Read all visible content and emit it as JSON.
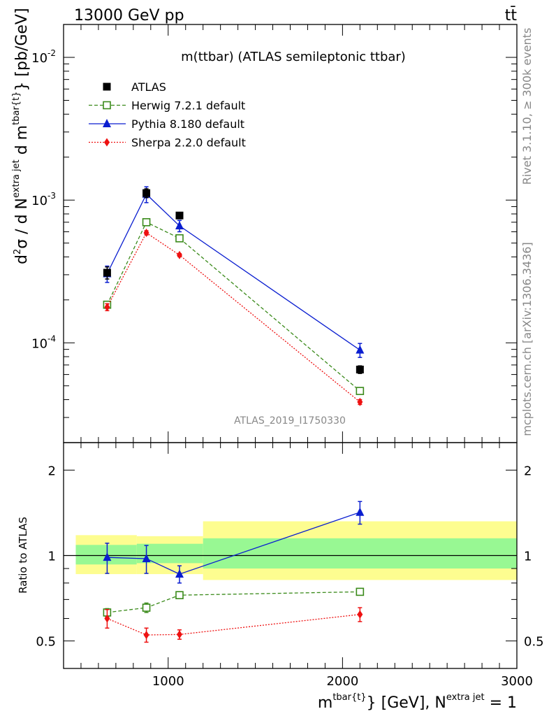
{
  "header": {
    "energy_label": "13000 GeV pp",
    "process_label": "tt̄"
  },
  "side_labels": {
    "rivet": "Rivet 3.1.10, ≥ 300k events",
    "mcplots": "mcplots.cern.ch [arXiv:1306.3436]"
  },
  "chart_data": [
    {
      "type": "line",
      "panel": "main",
      "title": "m(ttbar) (ATLAS semileptonic ttbar)",
      "watermark": "ATLAS_2019_I1750330",
      "ylabel": "d²σ / d N^{extra jet} d m^{tbar{t}} [pb/GeV]",
      "ylabel_parts": {
        "a": "d",
        "b": "2",
        "c": "σ /  d N",
        "d": "extra jet",
        "e": " d m",
        "f": "tbar{t}",
        "g": "} [pb/GeV]"
      },
      "yscale": "log",
      "ylim": [
        2e-05,
        0.017
      ],
      "xlim": [
        400,
        3000
      ],
      "y_ticks": [
        {
          "value": 0.01,
          "base": "10",
          "exp": "-2"
        },
        {
          "value": 0.001,
          "base": "10",
          "exp": "-3"
        },
        {
          "value": 0.0001,
          "base": "10",
          "exp": "-4"
        }
      ],
      "legend_position": "top-left",
      "series": [
        {
          "name": "ATLAS",
          "marker": "square",
          "color": "#000000",
          "x": [
            650,
            875,
            1065,
            2100
          ],
          "y": [
            0.00031,
            0.00112,
            0.00078,
            6.5e-05
          ],
          "yerr": [
            3e-05,
            8e-05,
            4e-05,
            4e-06
          ]
        },
        {
          "name": "Herwig 7.2.1 default",
          "marker": "open-square",
          "line": "dashed",
          "color": "#3a8a1a",
          "x": [
            650,
            875,
            1065,
            2100
          ],
          "y": [
            0.000185,
            0.0007,
            0.00054,
            4.6e-05
          ],
          "yerr": [
            8e-06,
            2e-05,
            1.5e-05,
            2e-06
          ]
        },
        {
          "name": "Pythia 8.180 default",
          "marker": "triangle",
          "line": "solid",
          "color": "#0a1ed0",
          "x": [
            650,
            875,
            1065,
            2100
          ],
          "y": [
            0.000305,
            0.0011,
            0.00066,
            8.9e-05
          ],
          "yerr": [
            4e-05,
            0.00014,
            6e-05,
            1e-05
          ]
        },
        {
          "name": "Sherpa 2.2.0 default",
          "marker": "diamond",
          "line": "dotted",
          "color": "#ee1111",
          "x": [
            650,
            875,
            1065,
            2100
          ],
          "y": [
            0.000178,
            0.00059,
            0.000412,
            3.85e-05
          ],
          "yerr": [
            1e-05,
            2e-05,
            1e-05,
            1.5e-06
          ]
        }
      ]
    },
    {
      "type": "line",
      "panel": "ratio",
      "ylabel": "Ratio to ATLAS",
      "xlabel_parts": {
        "a": "m",
        "b": "tbar{t}",
        "c": "} [GeV], N",
        "d": "extra jet",
        "e": " = 1"
      },
      "yscale": "log",
      "ylim": [
        0.4,
        2.5
      ],
      "xlim": [
        400,
        3000
      ],
      "y_ticks": [
        {
          "value": 0.5,
          "label": "0.5"
        },
        {
          "value": 1,
          "label": "1"
        },
        {
          "value": 2,
          "label": "2"
        }
      ],
      "x_ticks": [
        {
          "value": 1000,
          "label": "1000"
        },
        {
          "value": 2000,
          "label": "2000"
        },
        {
          "value": 3000,
          "label": "3000"
        }
      ],
      "bands": [
        {
          "x0": 470,
          "x1": 820,
          "yellow": [
            0.86,
            1.18
          ],
          "green": [
            0.93,
            1.09
          ]
        },
        {
          "x0": 820,
          "x1": 1200,
          "yellow": [
            0.86,
            1.17
          ],
          "green": [
            0.94,
            1.1
          ]
        },
        {
          "x0": 1200,
          "x1": 3000,
          "yellow": [
            0.82,
            1.32
          ],
          "green": [
            0.9,
            1.15
          ]
        }
      ],
      "series": [
        {
          "name": "Herwig 7.2.1 default",
          "marker": "open-square",
          "line": "dashed",
          "color": "#3a8a1a",
          "x": [
            650,
            875,
            1065,
            2100
          ],
          "y": [
            0.63,
            0.655,
            0.725,
            0.745
          ],
          "yerr": [
            0.02,
            0.025,
            0.015,
            0.02
          ]
        },
        {
          "name": "Pythia 8.180 default",
          "marker": "triangle",
          "line": "solid",
          "color": "#0a1ed0",
          "x": [
            650,
            875,
            1065,
            2100
          ],
          "y": [
            0.985,
            0.975,
            0.86,
            1.42
          ],
          "yerr": [
            0.12,
            0.11,
            0.06,
            0.13
          ]
        },
        {
          "name": "Sherpa 2.2.0 default",
          "marker": "diamond",
          "line": "dotted",
          "color": "#ee1111",
          "x": [
            650,
            875,
            1065,
            2100
          ],
          "y": [
            0.6,
            0.525,
            0.527,
            0.62
          ],
          "yerr": [
            0.045,
            0.03,
            0.02,
            0.035
          ]
        }
      ]
    }
  ]
}
